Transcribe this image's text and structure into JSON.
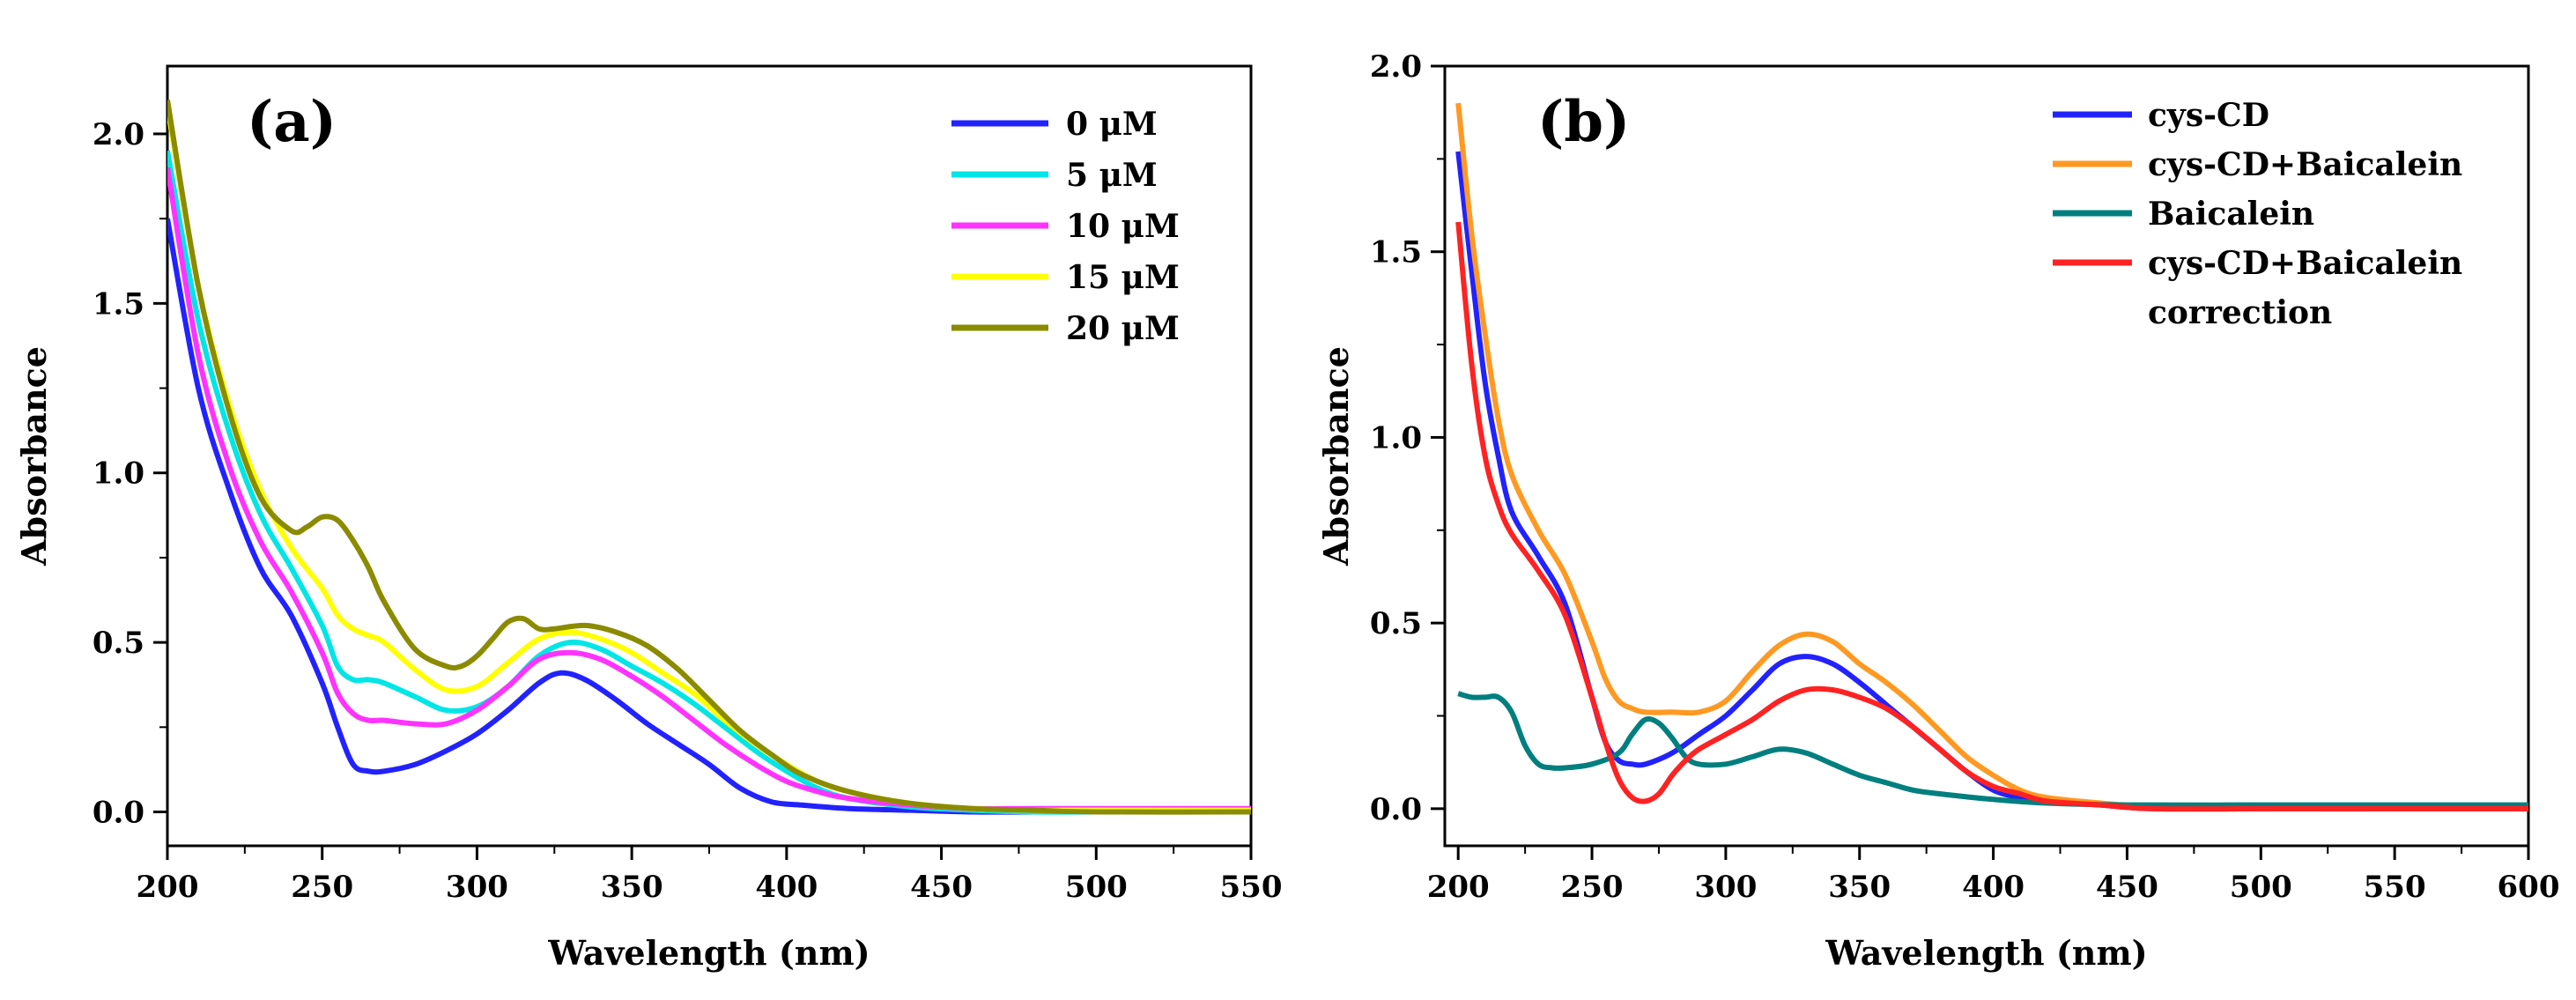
{
  "chart_data": [
    {
      "type": "line",
      "panel_label": "(a)",
      "xlabel": "Wavelength (nm)",
      "ylabel": "Absorbance",
      "xlim": [
        200,
        550
      ],
      "ylim": [
        -0.1,
        2.2
      ],
      "xticks": [
        "200",
        "250",
        "300",
        "350",
        "400",
        "450",
        "500",
        "550"
      ],
      "yticks": [
        "0.0",
        "0.5",
        "1.0",
        "1.5",
        "2.0"
      ],
      "legend_position": "top-right",
      "series": [
        {
          "name": "0 μM",
          "color": "#2222ff",
          "x": [
            200,
            210,
            220,
            230,
            240,
            250,
            255,
            260,
            265,
            270,
            280,
            290,
            300,
            310,
            320,
            327,
            335,
            345,
            355,
            365,
            375,
            385,
            395,
            405,
            420,
            440,
            460,
            480,
            500,
            550
          ],
          "y": [
            1.75,
            1.25,
            0.95,
            0.72,
            0.58,
            0.38,
            0.25,
            0.14,
            0.12,
            0.12,
            0.14,
            0.18,
            0.23,
            0.3,
            0.38,
            0.41,
            0.39,
            0.33,
            0.26,
            0.2,
            0.14,
            0.07,
            0.03,
            0.02,
            0.01,
            0.005,
            0.0,
            0.0,
            0.0,
            0.0
          ]
        },
        {
          "name": "5 μM",
          "color": "#00e5e5",
          "x": [
            200,
            210,
            220,
            230,
            240,
            250,
            255,
            260,
            265,
            270,
            280,
            290,
            300,
            310,
            320,
            330,
            340,
            350,
            360,
            370,
            380,
            390,
            400,
            410,
            420,
            440,
            460,
            480,
            500,
            550
          ],
          "y": [
            1.95,
            1.45,
            1.12,
            0.88,
            0.72,
            0.55,
            0.43,
            0.39,
            0.39,
            0.38,
            0.34,
            0.3,
            0.31,
            0.37,
            0.46,
            0.5,
            0.48,
            0.43,
            0.38,
            0.32,
            0.25,
            0.18,
            0.12,
            0.07,
            0.04,
            0.015,
            0.005,
            0.0,
            0.0,
            0.0
          ]
        },
        {
          "name": "10 μM",
          "color": "#ff33ff",
          "x": [
            200,
            210,
            220,
            230,
            240,
            250,
            255,
            260,
            265,
            270,
            280,
            290,
            300,
            310,
            320,
            330,
            340,
            350,
            360,
            370,
            380,
            390,
            400,
            410,
            420,
            440,
            460,
            480,
            500,
            550
          ],
          "y": [
            1.9,
            1.35,
            1.02,
            0.8,
            0.65,
            0.47,
            0.35,
            0.29,
            0.27,
            0.27,
            0.26,
            0.26,
            0.3,
            0.37,
            0.45,
            0.47,
            0.45,
            0.4,
            0.34,
            0.27,
            0.2,
            0.14,
            0.09,
            0.06,
            0.04,
            0.02,
            0.01,
            0.01,
            0.01,
            0.01
          ]
        },
        {
          "name": "15 μM",
          "color": "#ffff00",
          "x": [
            200,
            210,
            220,
            230,
            240,
            250,
            255,
            260,
            265,
            270,
            280,
            290,
            300,
            310,
            320,
            330,
            340,
            350,
            360,
            370,
            380,
            390,
            400,
            410,
            420,
            440,
            460,
            480,
            500,
            550
          ],
          "y": [
            2.08,
            1.55,
            1.2,
            0.95,
            0.78,
            0.66,
            0.58,
            0.54,
            0.52,
            0.5,
            0.42,
            0.36,
            0.37,
            0.44,
            0.51,
            0.53,
            0.51,
            0.47,
            0.41,
            0.35,
            0.27,
            0.2,
            0.14,
            0.09,
            0.06,
            0.025,
            0.01,
            0.005,
            0.005,
            0.005
          ]
        },
        {
          "name": "20 μM",
          "color": "#8b8b00",
          "x": [
            200,
            210,
            220,
            230,
            240,
            245,
            250,
            255,
            260,
            265,
            270,
            280,
            290,
            295,
            300,
            305,
            310,
            315,
            320,
            325,
            335,
            345,
            355,
            365,
            375,
            385,
            395,
            405,
            420,
            440,
            460,
            480,
            500,
            550
          ],
          "y": [
            2.1,
            1.55,
            1.18,
            0.93,
            0.83,
            0.84,
            0.87,
            0.86,
            0.8,
            0.72,
            0.62,
            0.48,
            0.43,
            0.43,
            0.46,
            0.51,
            0.56,
            0.57,
            0.54,
            0.54,
            0.55,
            0.53,
            0.49,
            0.42,
            0.33,
            0.24,
            0.17,
            0.11,
            0.06,
            0.025,
            0.01,
            0.005,
            0.0,
            0.0
          ]
        }
      ]
    },
    {
      "type": "line",
      "panel_label": "(b)",
      "xlabel": "Wavelength (nm)",
      "ylabel": "Absorbance",
      "xlim": [
        195,
        600
      ],
      "ylim": [
        -0.1,
        2.0
      ],
      "xticks": [
        "200",
        "250",
        "300",
        "350",
        "400",
        "450",
        "500",
        "550",
        "600"
      ],
      "yticks": [
        "0.0",
        "0.5",
        "1.0",
        "1.5",
        "2.0"
      ],
      "legend_position": "top-right",
      "series": [
        {
          "name": "cys-CD",
          "color": "#2222ff",
          "x": [
            200,
            205,
            210,
            215,
            220,
            230,
            240,
            250,
            255,
            260,
            265,
            270,
            280,
            290,
            300,
            310,
            320,
            330,
            340,
            350,
            360,
            370,
            380,
            390,
            400,
            410,
            420,
            440,
            460,
            500,
            550,
            600
          ],
          "y": [
            1.77,
            1.45,
            1.15,
            0.95,
            0.8,
            0.68,
            0.55,
            0.3,
            0.18,
            0.13,
            0.12,
            0.12,
            0.15,
            0.2,
            0.25,
            0.32,
            0.39,
            0.41,
            0.39,
            0.34,
            0.28,
            0.22,
            0.16,
            0.1,
            0.05,
            0.03,
            0.02,
            0.01,
            0.0,
            0.0,
            0.0,
            0.0
          ]
        },
        {
          "name": "cys-CD+Baicalein",
          "color": "#ff9922",
          "x": [
            200,
            205,
            210,
            215,
            220,
            230,
            240,
            250,
            255,
            260,
            265,
            270,
            280,
            290,
            300,
            310,
            320,
            330,
            340,
            350,
            360,
            370,
            380,
            390,
            400,
            410,
            420,
            440,
            460,
            500,
            550,
            600
          ],
          "y": [
            1.9,
            1.55,
            1.28,
            1.05,
            0.9,
            0.75,
            0.63,
            0.45,
            0.35,
            0.29,
            0.27,
            0.26,
            0.26,
            0.26,
            0.29,
            0.37,
            0.44,
            0.47,
            0.45,
            0.39,
            0.34,
            0.28,
            0.21,
            0.14,
            0.09,
            0.05,
            0.03,
            0.015,
            0.005,
            0.0,
            0.0,
            0.0
          ]
        },
        {
          "name": "Baicalein",
          "color": "#007f7f",
          "x": [
            200,
            205,
            210,
            215,
            220,
            225,
            230,
            235,
            240,
            250,
            260,
            265,
            270,
            275,
            280,
            285,
            290,
            300,
            310,
            320,
            330,
            340,
            350,
            360,
            370,
            380,
            400,
            420,
            450,
            500,
            550,
            600
          ],
          "y": [
            0.31,
            0.3,
            0.3,
            0.3,
            0.26,
            0.17,
            0.12,
            0.11,
            0.11,
            0.12,
            0.15,
            0.2,
            0.24,
            0.23,
            0.19,
            0.14,
            0.12,
            0.12,
            0.14,
            0.16,
            0.15,
            0.12,
            0.09,
            0.07,
            0.05,
            0.04,
            0.025,
            0.015,
            0.01,
            0.01,
            0.01,
            0.01
          ]
        },
        {
          "name": "cys-CD+Baicalein correction",
          "color": "#ff2222",
          "x": [
            200,
            205,
            210,
            215,
            220,
            230,
            240,
            250,
            255,
            260,
            265,
            270,
            275,
            280,
            285,
            290,
            300,
            310,
            320,
            330,
            340,
            350,
            360,
            370,
            380,
            390,
            400,
            410,
            420,
            440,
            460,
            500,
            550,
            600
          ],
          "y": [
            1.58,
            1.2,
            0.95,
            0.82,
            0.74,
            0.64,
            0.52,
            0.3,
            0.18,
            0.08,
            0.03,
            0.02,
            0.04,
            0.09,
            0.13,
            0.16,
            0.2,
            0.24,
            0.29,
            0.32,
            0.32,
            0.3,
            0.27,
            0.22,
            0.16,
            0.1,
            0.06,
            0.04,
            0.02,
            0.01,
            0.0,
            0.0,
            0.0,
            0.0
          ]
        }
      ]
    }
  ]
}
